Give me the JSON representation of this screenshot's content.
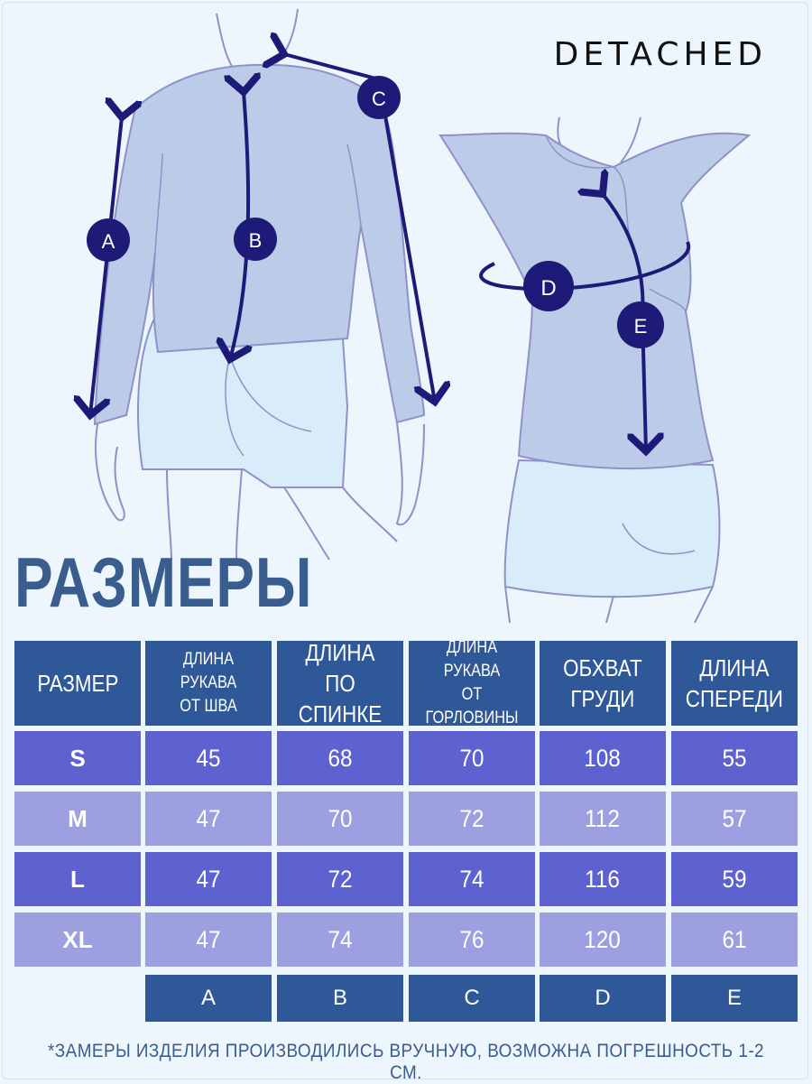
{
  "brand": "DETACHED",
  "title": "РАЗМЕРЫ",
  "markers": [
    "A",
    "B",
    "C",
    "D",
    "E"
  ],
  "table": {
    "headers": [
      {
        "line1": "РАЗМЕР",
        "line2": ""
      },
      {
        "line1": "ДЛИНА РУКАВА",
        "line2": "ОТ ШВА"
      },
      {
        "line1": "ДЛИНА",
        "line2": "ПО СПИНКЕ"
      },
      {
        "line1": "ДЛИНА РУКАВА",
        "line2": "ОТ ГОРЛОВИНЫ"
      },
      {
        "line1": "ОБХВАТ",
        "line2": "ГРУДИ"
      },
      {
        "line1": "ДЛИНА",
        "line2": "СПЕРЕДИ"
      }
    ],
    "rows": [
      [
        "S",
        "45",
        "68",
        "70",
        "108",
        "55"
      ],
      [
        "M",
        "47",
        "70",
        "72",
        "112",
        "57"
      ],
      [
        "L",
        "47",
        "72",
        "74",
        "116",
        "59"
      ],
      [
        "XL",
        "47",
        "74",
        "76",
        "120",
        "61"
      ]
    ],
    "footer": [
      "A",
      "B",
      "C",
      "D",
      "E"
    ]
  },
  "note": "*ЗАМЕРЫ ИЗДЕЛИЯ ПРОИЗВОДИЛИСЬ ВРУЧНУЮ, ВОЗМОЖНА ПОГРЕШНОСТЬ 1-2 СМ.",
  "colors": {
    "background": "#eef6fd",
    "header": "#2f5899",
    "row_dark": "#5d62d0",
    "row_light": "#9da0e0",
    "marker": "#1e1a78",
    "garment": "#bccce8",
    "shorts": "#d8ecf9",
    "outline": "#8e92c8"
  }
}
